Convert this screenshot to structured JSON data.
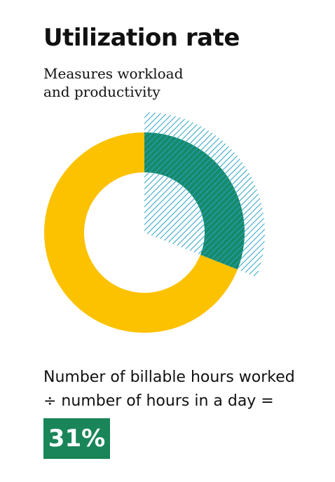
{
  "chart_data": {
    "type": "donut",
    "title": "Utilization rate",
    "subtitle": "Measures workload and productivity",
    "values": [
      31
    ],
    "value_labels": [
      "31%"
    ],
    "colors": {
      "value": "#168a6b",
      "rest": "#fcc200",
      "hatch": "#2aa3c4",
      "badge": "#1a8558"
    },
    "formula": [
      "Number of billable hours worked",
      "÷ number of hours in a day ="
    ]
  }
}
